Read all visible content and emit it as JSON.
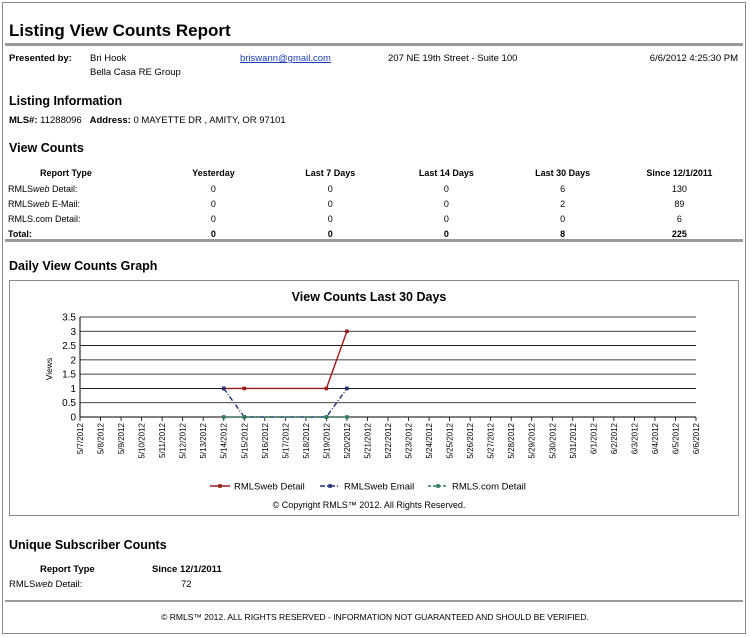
{
  "report": {
    "title": "Listing View Counts Report",
    "presented_by_label": "Presented by:",
    "agent_name": "Bri Hook",
    "agent_company": "Bella Casa RE Group",
    "agent_email": "briswann@gmail.com",
    "agent_address": "207 NE 19th Street - Suite 100",
    "report_datetime": "6/6/2012 4:25:30 PM"
  },
  "listing": {
    "heading": "Listing Information",
    "mls_label": "MLS#:",
    "mls_value": "11288096",
    "address_label": "Address:",
    "address_value": "0 MAYETTE DR , AMITY, OR 97101"
  },
  "view_counts": {
    "heading": "View Counts",
    "columns": [
      "Report Type",
      "Yesterday",
      "Last 7 Days",
      "Last 14 Days",
      "Last 30 Days",
      "Since 12/1/2011"
    ],
    "rows": [
      {
        "type_prefix": "RMLS",
        "type_italic": "web",
        "type_suffix": " Detail:",
        "values": [
          "0",
          "0",
          "0",
          "6",
          "130"
        ]
      },
      {
        "type_prefix": "RMLS",
        "type_italic": "web",
        "type_suffix": " E-Mail:",
        "values": [
          "0",
          "0",
          "0",
          "2",
          "89"
        ]
      },
      {
        "type_prefix": "RMLS.com Detail:",
        "type_italic": "",
        "type_suffix": "",
        "values": [
          "0",
          "0",
          "0",
          "0",
          "6"
        ]
      }
    ],
    "total": {
      "label": "Total:",
      "values": [
        "0",
        "0",
        "0",
        "8",
        "225"
      ]
    }
  },
  "graph_section": {
    "heading": "Daily View Counts Graph"
  },
  "chart_data": {
    "type": "line",
    "title": "View Counts Last 30 Days",
    "xlabel": "",
    "ylabel": "Views",
    "ylim": [
      0,
      3.5
    ],
    "yticks": [
      "0",
      "0.5",
      "1",
      "1.5",
      "2",
      "2.5",
      "3",
      "3.5"
    ],
    "grid": "horizontal",
    "legend_position": "bottom",
    "x": [
      "5/7/2012",
      "5/8/2012",
      "5/9/2012",
      "5/10/2012",
      "5/11/2012",
      "5/12/2012",
      "5/13/2012",
      "5/14/2012",
      "5/15/2012",
      "5/16/2012",
      "5/17/2012",
      "5/18/2012",
      "5/19/2012",
      "5/20/2012",
      "5/21/2012",
      "5/22/2012",
      "5/23/2012",
      "5/24/2012",
      "5/25/2012",
      "5/26/2012",
      "5/27/2012",
      "5/28/2012",
      "5/29/2012",
      "5/30/2012",
      "5/31/2012",
      "6/1/2012",
      "6/2/2012",
      "6/3/2012",
      "6/4/2012",
      "6/5/2012",
      "6/6/2012"
    ],
    "series": [
      {
        "name": "RMLSweb Detail",
        "color": "#9b1b1b",
        "dash": "",
        "points": [
          [
            "5/14/2012",
            1
          ],
          [
            "5/15/2012",
            1
          ],
          [
            "5/19/2012",
            1
          ],
          [
            "5/20/2012",
            3
          ]
        ]
      },
      {
        "name": "RMLSweb Email",
        "color": "#1f2f7a",
        "dash": "5,2,1,2",
        "points": [
          [
            "5/14/2012",
            1
          ],
          [
            "5/15/2012",
            0
          ],
          [
            "5/19/2012",
            0
          ],
          [
            "5/20/2012",
            1
          ]
        ]
      },
      {
        "name": "RMLS.com Detail",
        "color": "#2e7d5a",
        "dash": "3,2",
        "points": [
          [
            "5/14/2012",
            0
          ],
          [
            "5/15/2012",
            0
          ],
          [
            "5/19/2012",
            0
          ],
          [
            "5/20/2012",
            0
          ]
        ]
      }
    ],
    "copyright": "© Copyright RMLS™ 2012.  All Rights Reserved."
  },
  "unique_subscribers": {
    "heading": "Unique Subscriber Counts",
    "col_type": "Report Type",
    "col_since": "Since 12/1/2011",
    "row_prefix": "RMLS",
    "row_italic": "web",
    "row_suffix": " Detail:",
    "row_value": "72"
  },
  "footer": "© RMLS™ 2012. ALL RIGHTS RESERVED - INFORMATION NOT GUARANTEED AND SHOULD BE VERIFIED."
}
